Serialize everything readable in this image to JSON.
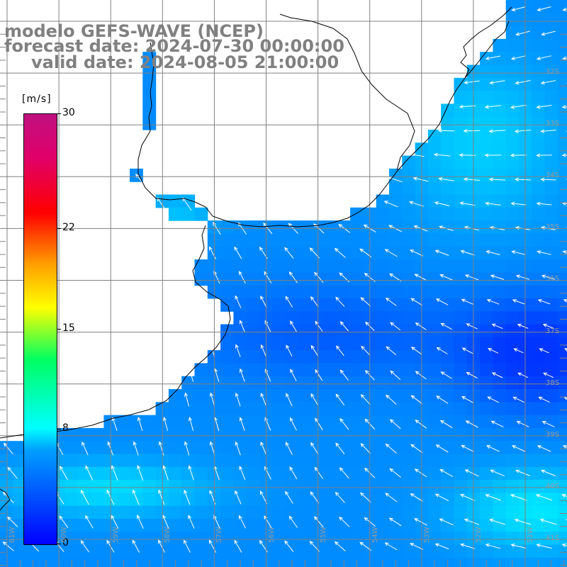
{
  "title": {
    "line1": "modelo GEFS-WAVE (NCEP)",
    "line2": "forecast date: 2024-07-30 00:00:00",
    "line3": "valid date: 2024-08-05 21:00:00"
  },
  "colorbar": {
    "unit": "[m/s]",
    "min": 0,
    "max": 30,
    "ticks": [
      {
        "value": 30,
        "label": "30"
      },
      {
        "value": 22,
        "label": "22"
      },
      {
        "value": 15,
        "label": "15"
      },
      {
        "value": 8,
        "label": "8"
      },
      {
        "value": 0,
        "label": "0"
      }
    ]
  },
  "lat_labels": [
    "32S",
    "33S",
    "34S",
    "35S",
    "36S",
    "37S",
    "38S",
    "39S",
    "40S",
    "41S"
  ],
  "lon_labels": [
    "61W",
    "60W",
    "59W",
    "58W",
    "57W",
    "56W",
    "55W",
    "54W",
    "53W",
    "52W",
    "51W"
  ],
  "field": {
    "variable": "wind speed",
    "main_direction": "from south-east",
    "range_ms": [
      0,
      9
    ]
  },
  "colors": {
    "land": "#ffffff",
    "coast": "#000000",
    "grid": "#808080",
    "arrow": "#ffffff",
    "title": "#808080"
  }
}
